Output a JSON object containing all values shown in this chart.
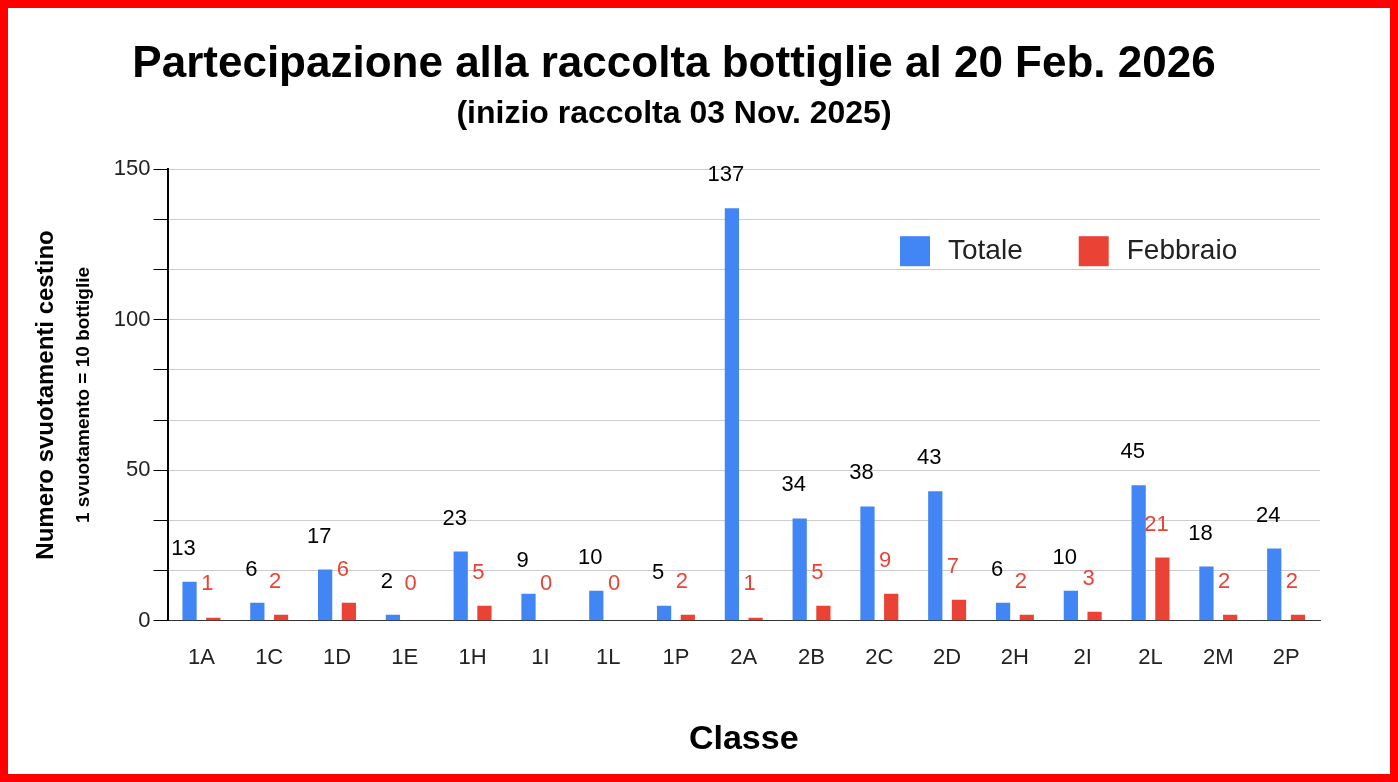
{
  "chart_data": {
    "type": "bar",
    "title": "Partecipazione alla raccolta bottiglie al 20 Feb. 2026",
    "subtitle": "(inizio raccolta 03 Nov. 2025)",
    "xlabel": "Classe",
    "ylabel": "Numero svuotamenti cestino",
    "annotations": [
      "1 svuotamento = 10 bottiglie"
    ],
    "categories": [
      "1A",
      "1C",
      "1D",
      "1E",
      "1H",
      "1I",
      "1L",
      "1P",
      "2A",
      "2B",
      "2C",
      "2D",
      "2H",
      "2I",
      "2L",
      "2M",
      "2P"
    ],
    "series": [
      {
        "name": "Totale",
        "color": "#4285f4",
        "values": [
          13,
          6,
          17,
          2,
          23,
          9,
          10,
          5,
          137,
          34,
          38,
          43,
          6,
          10,
          45,
          18,
          24
        ]
      },
      {
        "name": "Febbraio",
        "color": "#ea4335",
        "values": [
          1,
          2,
          6,
          0,
          5,
          0,
          0,
          2,
          1,
          5,
          9,
          7,
          2,
          3,
          21,
          2,
          2
        ]
      }
    ],
    "ylim": [
      0,
      150
    ],
    "yticks": [
      0,
      {
        "value": 16.67,
        "label": null
      },
      {
        "value": 33.33,
        "label": null
      },
      50,
      {
        "value": 66.67,
        "label": null
      },
      {
        "value": 83.33,
        "label": null
      },
      100,
      {
        "value": 116.67,
        "label": null
      },
      {
        "value": 133.33,
        "label": null
      },
      150
    ],
    "grid": "y",
    "legend": "top right",
    "data_labels": true
  }
}
